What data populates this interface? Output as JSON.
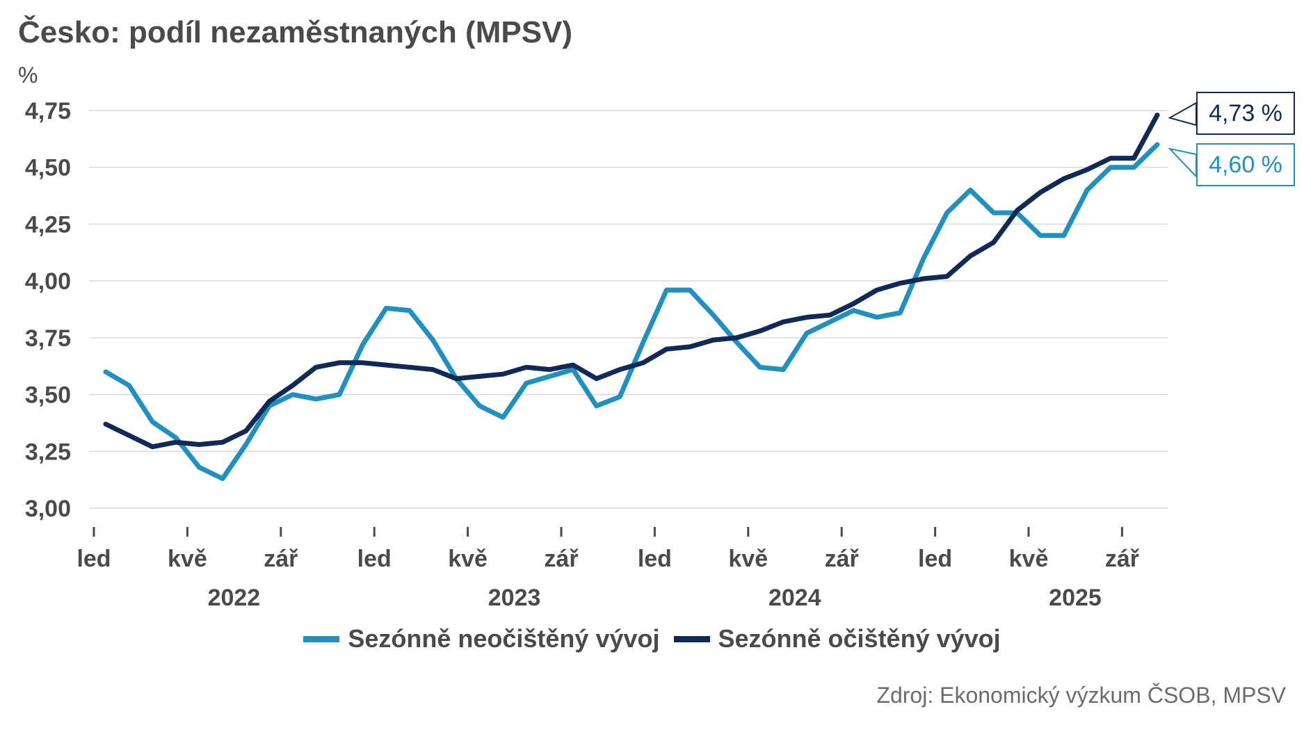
{
  "title": "Česko: podíl nezaměstnaných (MPSV)",
  "unit": "%",
  "source": "Zdroj: Ekonomický výzkum ČSOB, MPSV",
  "colors": {
    "unadjusted": "#2090c0",
    "adjusted": "#0f2a57",
    "grid": "#d9d9d9",
    "text": "#4a4a4a"
  },
  "legend": {
    "unadjusted": "Sezónně neočištěný vývoj",
    "adjusted": "Sezónně očištěný vývoj"
  },
  "callouts": {
    "adjusted": "4,73 %",
    "unadjusted": "4,60 %"
  },
  "chart_data": {
    "type": "line",
    "ylim": [
      3.0,
      4.75
    ],
    "y_ticks": [
      "3,00",
      "3,25",
      "3,50",
      "3,75",
      "4,00",
      "4,25",
      "4,50",
      "4,75"
    ],
    "x_tick_labels": [
      "led",
      "kvě",
      "zář",
      "led",
      "kvě",
      "zář",
      "led",
      "kvě",
      "zář",
      "led",
      "kvě",
      "zář"
    ],
    "year_labels": [
      "2022",
      "2023",
      "2024",
      "2025"
    ],
    "grid": true,
    "legend_position": "bottom",
    "series": [
      {
        "name": "Sezónně neočištěný vývoj",
        "values": [
          3.6,
          3.54,
          3.38,
          3.31,
          3.18,
          3.13,
          3.28,
          3.45,
          3.5,
          3.48,
          3.5,
          3.72,
          3.88,
          3.87,
          3.74,
          3.57,
          3.45,
          3.4,
          3.55,
          3.58,
          3.61,
          3.45,
          3.49,
          3.73,
          3.96,
          3.96,
          3.85,
          3.73,
          3.62,
          3.61,
          3.77,
          3.82,
          3.87,
          3.84,
          3.86,
          4.1,
          4.3,
          4.4,
          4.3,
          4.3,
          4.2,
          4.2,
          4.4,
          4.5,
          4.5,
          4.6
        ]
      },
      {
        "name": "Sezónně očištěný vývoj",
        "values": [
          3.37,
          3.32,
          3.27,
          3.29,
          3.28,
          3.29,
          3.34,
          3.47,
          3.54,
          3.62,
          3.64,
          3.64,
          3.63,
          3.62,
          3.61,
          3.57,
          3.58,
          3.59,
          3.62,
          3.61,
          3.63,
          3.57,
          3.61,
          3.64,
          3.7,
          3.71,
          3.74,
          3.75,
          3.78,
          3.82,
          3.84,
          3.85,
          3.9,
          3.96,
          3.99,
          4.01,
          4.02,
          4.11,
          4.17,
          4.31,
          4.39,
          4.45,
          4.49,
          4.54,
          4.54,
          4.73
        ]
      }
    ]
  }
}
